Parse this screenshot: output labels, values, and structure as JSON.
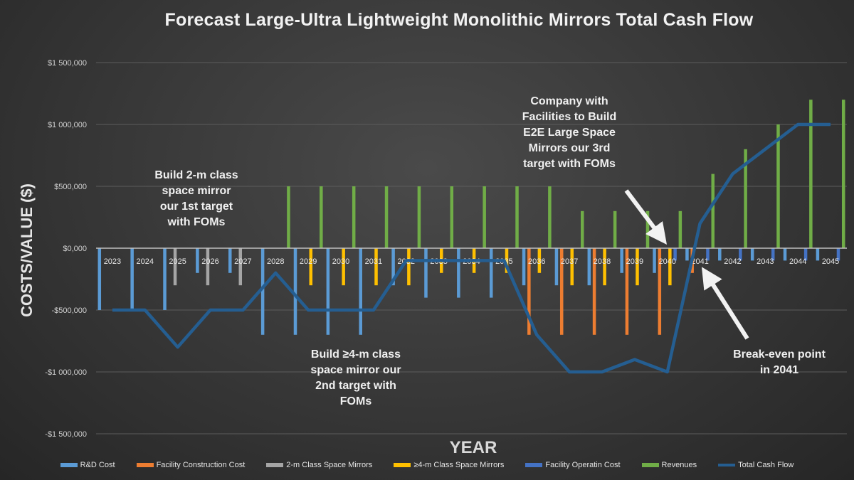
{
  "chart_data": {
    "type": "bar",
    "title": "Forecast Large-Ultra Lightweight Monolithic Mirrors Total Cash Flow",
    "xlabel": "YEAR",
    "ylabel": "COSTS/VALUE ($)",
    "ylim": [
      -1500000,
      1500000
    ],
    "yticks": [
      1500000,
      1000000,
      500000,
      0,
      -500000,
      -1000000,
      -1500000
    ],
    "ytick_labels": [
      "$1 500,000",
      "$1 000,000",
      "$500,000",
      "$0,000",
      "-$500,000",
      "-$1 000,000",
      "-$1 500,000"
    ],
    "grid": true,
    "legend_position": "bottom",
    "categories": [
      "2023",
      "2024",
      "2025",
      "2026",
      "2027",
      "2028",
      "2029",
      "2030",
      "2031",
      "2032",
      "2033",
      "2034",
      "2035",
      "2036",
      "2037",
      "2038",
      "2039",
      "2040",
      "2041",
      "2042",
      "2043",
      "2044",
      "2045"
    ],
    "series": [
      {
        "name": "R&D Cost",
        "kind": "bar",
        "color": "#5b9bd5",
        "values": [
          -500000,
          -500000,
          -500000,
          -200000,
          -200000,
          -700000,
          -700000,
          -700000,
          -700000,
          -300000,
          -400000,
          -400000,
          -400000,
          -300000,
          -300000,
          -300000,
          -200000,
          -200000,
          -100000,
          -100000,
          -100000,
          -100000,
          -100000
        ]
      },
      {
        "name": "Facility Construction Cost",
        "kind": "bar",
        "color": "#ed7d31",
        "values": [
          0,
          0,
          0,
          0,
          0,
          0,
          0,
          0,
          0,
          0,
          0,
          0,
          0,
          -700000,
          -700000,
          -700000,
          -700000,
          -700000,
          -200000,
          0,
          0,
          0,
          0
        ]
      },
      {
        "name": "2-m Class Space Mirrors",
        "kind": "bar",
        "color": "#a5a5a5",
        "values": [
          0,
          0,
          -300000,
          -300000,
          -300000,
          0,
          0,
          0,
          0,
          0,
          0,
          0,
          0,
          0,
          0,
          0,
          0,
          0,
          0,
          0,
          0,
          0,
          0
        ]
      },
      {
        "name": "≥4-m Class Space Mirrors",
        "kind": "bar",
        "color": "#ffc000",
        "values": [
          0,
          0,
          0,
          0,
          0,
          0,
          -300000,
          -300000,
          -300000,
          -300000,
          -200000,
          -200000,
          -200000,
          -200000,
          -300000,
          -300000,
          -300000,
          -300000,
          0,
          0,
          0,
          0,
          0
        ]
      },
      {
        "name": "Facility Operatin Cost",
        "kind": "bar",
        "color": "#4472c4",
        "values": [
          0,
          0,
          0,
          0,
          0,
          0,
          0,
          0,
          0,
          0,
          0,
          0,
          0,
          0,
          0,
          0,
          0,
          -100000,
          -100000,
          -100000,
          -100000,
          -100000,
          -100000
        ]
      },
      {
        "name": "Revenues",
        "kind": "bar",
        "color": "#70ad47",
        "values": [
          0,
          0,
          0,
          0,
          0,
          500000,
          500000,
          500000,
          500000,
          500000,
          500000,
          500000,
          500000,
          500000,
          300000,
          300000,
          300000,
          300000,
          600000,
          800000,
          1000000,
          1200000,
          1200000
        ]
      },
      {
        "name": "Total Cash Flow",
        "kind": "line",
        "color": "#255e91",
        "values": [
          -500000,
          -500000,
          -800000,
          -500000,
          -500000,
          -200000,
          -500000,
          -500000,
          -500000,
          -100000,
          -100000,
          -100000,
          -100000,
          -700000,
          -1000000,
          -1000000,
          -900000,
          -1000000,
          200000,
          600000,
          800000,
          1000000,
          1000000
        ]
      }
    ],
    "annotations": [
      {
        "id": "first-target",
        "text": "Build 2-m class space mirror our 1st target with FOMs",
        "lines": [
          "Build 2-m class",
          "space mirror",
          "our 1st target",
          "with FOMs"
        ]
      },
      {
        "id": "second-target",
        "text": "Build ≥4-m class space mirror our 2nd target with FOMs",
        "lines": [
          "Build ≥4-m class",
          "space mirror  our",
          "2nd target with",
          "FOMs"
        ]
      },
      {
        "id": "third-target",
        "text": "Company with Facilities to Build E2E Large Space Mirrors our 3rd target with FOMs",
        "lines": [
          "Company with",
          "Facilities to Build",
          "E2E Large Space",
          "Mirrors our 3rd",
          "target with FOMs"
        ],
        "points_to": "2040"
      },
      {
        "id": "break-even",
        "text": "Break-even point in 2041",
        "lines": [
          "Break-even point",
          "in 2041"
        ],
        "points_to": "2041"
      }
    ]
  }
}
